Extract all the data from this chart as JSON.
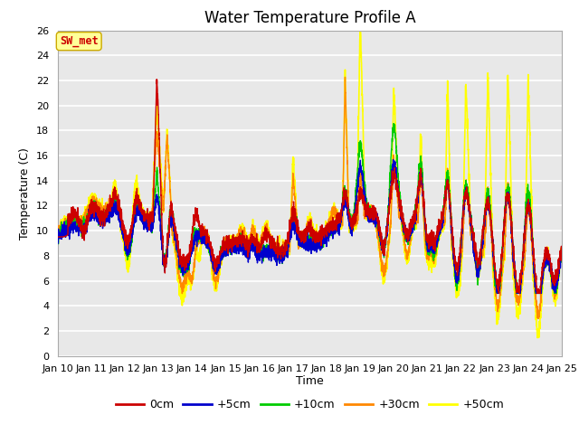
{
  "title": "Water Temperature Profile A",
  "xlabel": "Time",
  "ylabel": "Temperature (C)",
  "ylim": [
    0,
    26
  ],
  "yticks": [
    0,
    2,
    4,
    6,
    8,
    10,
    12,
    14,
    16,
    18,
    20,
    22,
    24,
    26
  ],
  "x_tick_days": [
    10,
    11,
    12,
    13,
    14,
    15,
    16,
    17,
    18,
    19,
    20,
    21,
    22,
    23,
    24,
    25
  ],
  "line_colors": [
    "#cc0000",
    "#0000cc",
    "#00cc00",
    "#ff8800",
    "#ffff00"
  ],
  "line_labels": [
    "0cm",
    "+5cm",
    "+10cm",
    "+30cm",
    "+50cm"
  ],
  "line_widths": [
    1.0,
    1.0,
    1.0,
    1.0,
    1.2
  ],
  "annotation_label": "SW_met",
  "annotation_color": "#cc0000",
  "annotation_bg": "#ffff99",
  "annotation_border": "#ccaa00",
  "plot_bg_color": "#e8e8e8",
  "title_fontsize": 12,
  "label_fontsize": 9,
  "tick_fontsize": 8
}
